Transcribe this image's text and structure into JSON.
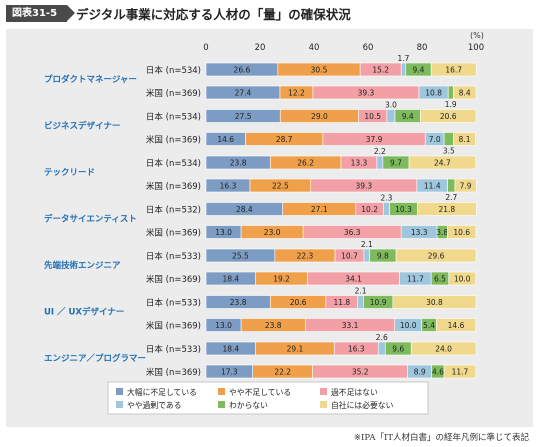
{
  "header": {
    "figure_number": "図表31-5",
    "title": "デジタル事業に対応する人材の「量」の確保状況"
  },
  "source_note": "※IPA「IT人材白書」の経年凡例に準じて表記",
  "colors": {
    "series": [
      "#7d9cc4",
      "#f0a04b",
      "#f2a0a6",
      "#9ec6dc",
      "#7dbb5c",
      "#f0d98c"
    ],
    "panel_background": "#ececec",
    "label_color": "#1f6fb5"
  },
  "chart_data": {
    "type": "bar",
    "orientation": "horizontal",
    "stacked": true,
    "percent_unit": "(%)",
    "xlim": [
      0,
      100
    ],
    "x_ticks": [
      0,
      20,
      40,
      60,
      80,
      100
    ],
    "series_names": [
      "大幅に不足している",
      "やや不足している",
      "過不足はない",
      "やや過剰である",
      "わからない",
      "自社には必要ない"
    ],
    "groups": [
      {
        "name": "プロダクトマネージャー",
        "rows": [
          {
            "label": "日本 (n=534)",
            "values": [
              26.6,
              30.5,
              15.2,
              1.7,
              9.4,
              16.7
            ],
            "labels": [
              "26.6",
              "30.5",
              "15.2",
              "1.7",
              "9.4",
              "16.7"
            ]
          },
          {
            "label": "米国 (n=369)",
            "values": [
              27.4,
              12.2,
              39.3,
              10.8,
              1.9,
              8.4
            ],
            "labels": [
              "27.4",
              "12.2",
              "39.3",
              "10.8",
              "1.9",
              "8.4"
            ]
          }
        ]
      },
      {
        "name": "ビジネスデザイナー",
        "rows": [
          {
            "label": "日本 (n=534)",
            "values": [
              27.5,
              29.0,
              10.5,
              3.0,
              9.4,
              20.6
            ],
            "labels": [
              "27.5",
              "29.0",
              "10.5",
              "3.0",
              "9.4",
              "20.6"
            ]
          },
          {
            "label": "米国 (n=369)",
            "values": [
              14.6,
              28.7,
              37.9,
              7.0,
              3.5,
              8.1
            ],
            "labels": [
              "14.6",
              "28.7",
              "37.9",
              "7.0",
              "3.5",
              "8.1"
            ]
          }
        ]
      },
      {
        "name": "テックリード",
        "rows": [
          {
            "label": "日本 (n=534)",
            "values": [
              23.8,
              26.2,
              13.3,
              2.2,
              9.7,
              24.7
            ],
            "labels": [
              "23.8",
              "26.2",
              "13.3",
              "2.2",
              "9.7",
              "24.7"
            ]
          },
          {
            "label": "米国 (n=369)",
            "values": [
              16.3,
              22.5,
              39.3,
              11.4,
              2.7,
              7.9
            ],
            "labels": [
              "16.3",
              "22.5",
              "39.3",
              "11.4",
              "2.7",
              "7.9"
            ]
          }
        ]
      },
      {
        "name": "データサイエンティスト",
        "rows": [
          {
            "label": "日本 (n=532)",
            "values": [
              28.4,
              27.1,
              10.2,
              2.3,
              10.3,
              21.8
            ],
            "labels": [
              "28.4",
              "27.1",
              "10.2",
              "2.3",
              "10.3",
              "21.8"
            ]
          },
          {
            "label": "米国 (n=369)",
            "values": [
              13.0,
              23.0,
              36.3,
              13.3,
              3.8,
              10.6
            ],
            "labels": [
              "13.0",
              "23.0",
              "36.3",
              "13.3",
              "3.8",
              "10.6"
            ]
          }
        ]
      },
      {
        "name": "先端技術エンジニア",
        "rows": [
          {
            "label": "日本 (n=533)",
            "values": [
              25.5,
              22.3,
              10.7,
              2.1,
              9.8,
              29.6
            ],
            "labels": [
              "25.5",
              "22.3",
              "10.7",
              "2.1",
              "9.8",
              "29.6"
            ]
          },
          {
            "label": "米国 (n=369)",
            "values": [
              18.4,
              19.2,
              34.1,
              11.7,
              6.5,
              10.0
            ],
            "labels": [
              "18.4",
              "19.2",
              "34.1",
              "11.7",
              "6.5",
              "10.0"
            ]
          }
        ]
      },
      {
        "name": "UI ／ UXデザイナー",
        "rows": [
          {
            "label": "日本 (n=533)",
            "values": [
              23.8,
              20.6,
              11.8,
              2.1,
              10.9,
              30.8
            ],
            "labels": [
              "23.8",
              "20.6",
              "11.8",
              "2.1",
              "10.9",
              "30.8"
            ]
          },
          {
            "label": "米国 (n=369)",
            "values": [
              13.0,
              23.8,
              33.1,
              10.0,
              5.4,
              14.6
            ],
            "labels": [
              "13.0",
              "23.8",
              "33.1",
              "10.0",
              "5.4",
              "14.6"
            ]
          }
        ]
      },
      {
        "name": "エンジニア／プログラマー",
        "rows": [
          {
            "label": "日本 (n=533)",
            "values": [
              18.4,
              29.1,
              16.3,
              2.6,
              9.6,
              24.0
            ],
            "labels": [
              "18.4",
              "29.1",
              "16.3",
              "2.6",
              "9.6",
              "24.0"
            ]
          },
          {
            "label": "米国 (n=369)",
            "values": [
              17.3,
              22.2,
              35.2,
              8.9,
              4.6,
              11.7
            ],
            "labels": [
              "17.3",
              "22.2",
              "35.2",
              "8.9",
              "4.6",
              "11.7"
            ]
          }
        ]
      }
    ],
    "legend_position": "bottom"
  }
}
